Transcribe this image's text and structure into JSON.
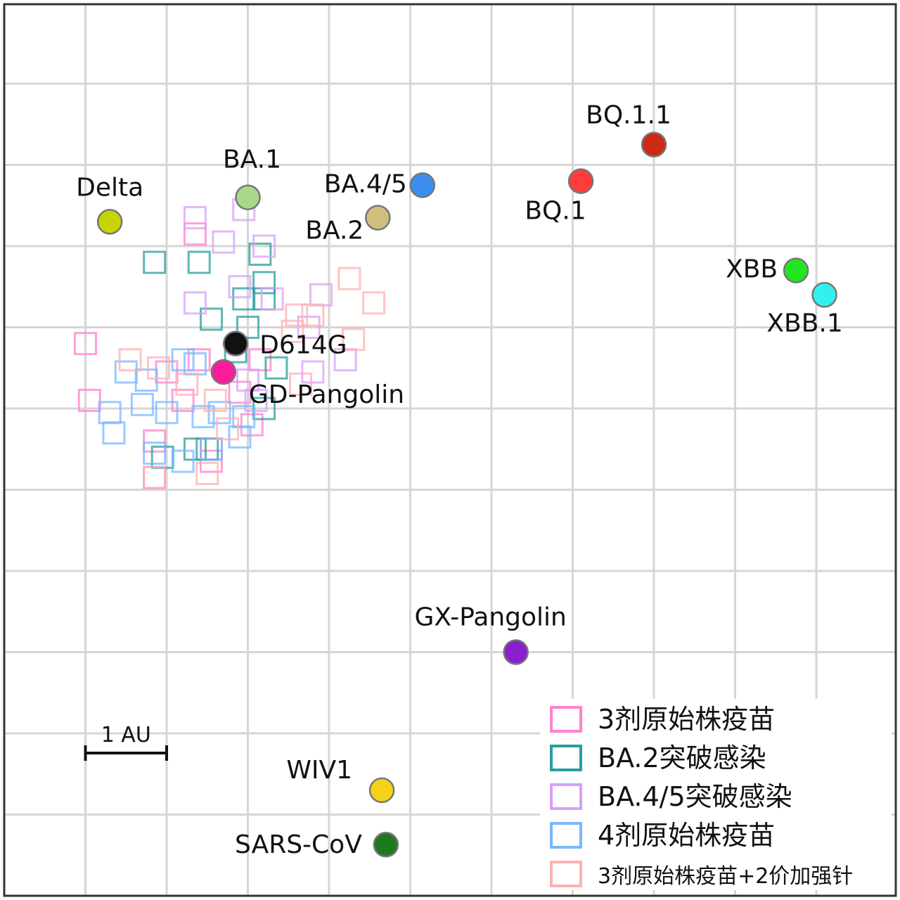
{
  "chart_data": {
    "type": "scatter",
    "title": "",
    "xlabel": "",
    "ylabel": "",
    "xlim": [
      0,
      11
    ],
    "ylim": [
      0,
      11
    ],
    "grid": true,
    "colors": {
      "ag3": "#ff80d0",
      "ba2": "#2a9d9d",
      "ba45": "#d9a0f5",
      "ag4": "#7ab8ff",
      "bival": "#ffb0b0"
    },
    "scale_bar": {
      "label": "1 AU",
      "length": 1,
      "x": 1.0,
      "y": 2.0
    },
    "viruses": [
      {
        "name": "Delta",
        "x": 1.3,
        "y": 8.3,
        "color": "#c8d400"
      },
      {
        "name": "BA.1",
        "x": 3.0,
        "y": 8.6,
        "color": "#a8d88a"
      },
      {
        "name": "BA.2",
        "x": 4.6,
        "y": 8.35,
        "color": "#cfbe7c"
      },
      {
        "name": "BA.4/5",
        "x": 5.15,
        "y": 8.75,
        "color": "#3b8ef0"
      },
      {
        "name": "BQ.1",
        "x": 7.1,
        "y": 8.8,
        "color": "#ff3c3c"
      },
      {
        "name": "BQ.1.1",
        "x": 8.0,
        "y": 9.25,
        "color": "#cc2a14"
      },
      {
        "name": "XBB",
        "x": 9.75,
        "y": 7.7,
        "color": "#22e622"
      },
      {
        "name": "XBB.1",
        "x": 10.1,
        "y": 7.4,
        "color": "#33f0f0"
      },
      {
        "name": "D614G",
        "x": 2.85,
        "y": 6.8,
        "color": "#111111"
      },
      {
        "name": "GD-Pangolin",
        "x": 2.7,
        "y": 6.45,
        "color": "#ff1a9a"
      },
      {
        "name": "GX-Pangolin",
        "x": 6.3,
        "y": 3.0,
        "color": "#8a1fd0"
      },
      {
        "name": "WIV1",
        "x": 4.65,
        "y": 1.3,
        "color": "#f5d21a"
      },
      {
        "name": "SARS-CoV",
        "x": 4.7,
        "y": 0.63,
        "color": "#1f7a1f"
      }
    ],
    "sera": [
      {
        "group": "ag3",
        "points": [
          [
            2.35,
            8.15
          ],
          [
            1.0,
            6.8
          ],
          [
            1.05,
            6.1
          ],
          [
            2.0,
            6.45
          ],
          [
            2.4,
            6.6
          ],
          [
            2.9,
            6.2
          ],
          [
            2.55,
            5.5
          ],
          [
            1.85,
            5.6
          ],
          [
            1.85,
            5.15
          ],
          [
            2.55,
            5.35
          ],
          [
            3.05,
            5.8
          ],
          [
            2.2,
            6.1
          ],
          [
            3.15,
            6.6
          ]
        ]
      },
      {
        "group": "ba2",
        "points": [
          [
            1.85,
            7.8
          ],
          [
            2.4,
            7.8
          ],
          [
            3.15,
            7.9
          ],
          [
            3.2,
            7.55
          ],
          [
            2.95,
            7.35
          ],
          [
            3.2,
            7.35
          ],
          [
            2.55,
            7.1
          ],
          [
            3.0,
            7.0
          ],
          [
            2.85,
            6.7
          ],
          [
            3.35,
            6.5
          ],
          [
            3.2,
            6.0
          ],
          [
            2.35,
            5.5
          ],
          [
            2.5,
            5.5
          ],
          [
            1.95,
            5.4
          ]
        ]
      },
      {
        "group": "ba45",
        "points": [
          [
            2.35,
            8.35
          ],
          [
            2.95,
            8.45
          ],
          [
            2.7,
            8.05
          ],
          [
            3.2,
            8.0
          ],
          [
            2.35,
            7.3
          ],
          [
            2.9,
            7.5
          ],
          [
            3.3,
            7.35
          ],
          [
            3.9,
            7.4
          ],
          [
            3.75,
            7.0
          ],
          [
            4.2,
            6.6
          ],
          [
            3.8,
            6.45
          ],
          [
            3.0,
            6.35
          ],
          [
            3.1,
            6.1
          ]
        ]
      },
      {
        "group": "ag4",
        "points": [
          [
            1.5,
            6.45
          ],
          [
            1.75,
            6.35
          ],
          [
            2.2,
            6.6
          ],
          [
            2.35,
            6.55
          ],
          [
            1.3,
            5.95
          ],
          [
            1.7,
            6.05
          ],
          [
            2.0,
            5.95
          ],
          [
            2.45,
            5.9
          ],
          [
            2.65,
            5.95
          ],
          [
            2.95,
            5.9
          ],
          [
            1.35,
            5.7
          ],
          [
            1.85,
            5.45
          ],
          [
            2.2,
            5.35
          ],
          [
            2.55,
            5.5
          ],
          [
            2.9,
            5.65
          ]
        ]
      },
      {
        "group": "bival",
        "points": [
          [
            4.25,
            7.6
          ],
          [
            4.55,
            7.3
          ],
          [
            3.6,
            7.15
          ],
          [
            3.8,
            7.15
          ],
          [
            3.55,
            6.95
          ],
          [
            4.3,
            6.85
          ],
          [
            1.55,
            6.6
          ],
          [
            1.9,
            6.5
          ],
          [
            2.25,
            6.3
          ],
          [
            2.6,
            6.1
          ],
          [
            3.65,
            6.3
          ],
          [
            1.85,
            5.15
          ],
          [
            2.5,
            5.2
          ],
          [
            2.75,
            5.75
          ]
        ]
      }
    ],
    "legend": {
      "placement": "bottom-right",
      "entries": [
        {
          "label": "3剂原始株疫苗",
          "group": "ag3"
        },
        {
          "label": "BA.2突破感染",
          "group": "ba2"
        },
        {
          "label": "BA.4/5突破感染",
          "group": "ba45"
        },
        {
          "label": "4剂原始株疫苗",
          "group": "ag4"
        },
        {
          "label": "3剂原始株疫苗+2价加强针",
          "group": "bival"
        }
      ]
    }
  }
}
